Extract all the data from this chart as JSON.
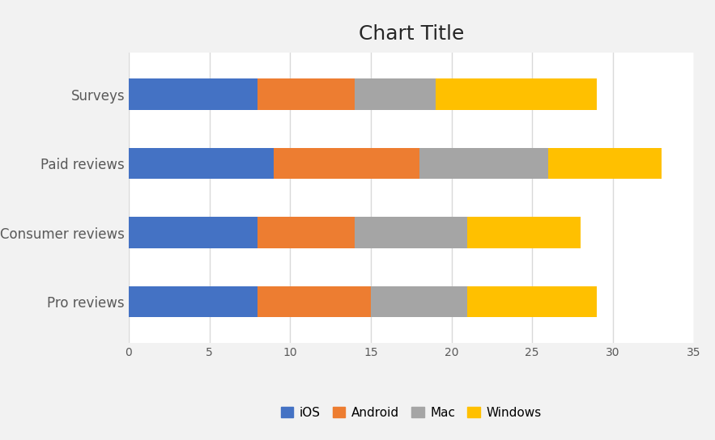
{
  "categories": [
    "Pro reviews",
    "Consumer reviews",
    "Paid reviews",
    "Surveys"
  ],
  "series": [
    {
      "label": "iOS",
      "values": [
        8,
        8,
        9,
        8
      ],
      "color": "#4472C4"
    },
    {
      "label": "Android",
      "values": [
        7,
        6,
        9,
        6
      ],
      "color": "#ED7D31"
    },
    {
      "label": "Mac",
      "values": [
        6,
        7,
        8,
        5
      ],
      "color": "#A5A5A5"
    },
    {
      "label": "Windows",
      "values": [
        8,
        7,
        7,
        10
      ],
      "color": "#FFC000"
    }
  ],
  "title": "Chart Title",
  "title_fontsize": 18,
  "xlim": [
    0,
    35
  ],
  "xticks": [
    0,
    5,
    10,
    15,
    20,
    25,
    30,
    35
  ],
  "figure_bg_color": "#F2F2F2",
  "plot_bg_color": "#FFFFFF",
  "grid_color": "#D9D9D9",
  "bar_height": 0.45,
  "tick_label_color": "#595959",
  "tick_fontsize": 10,
  "ylabel_fontsize": 12
}
